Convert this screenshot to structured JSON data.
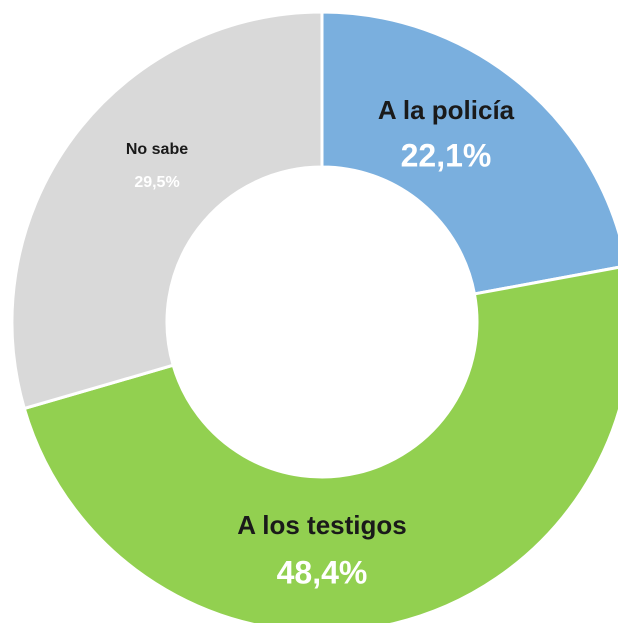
{
  "chart_data": {
    "type": "donut",
    "categories": [
      "A la policía",
      "A los testigos",
      "No sabe"
    ],
    "values": [
      22.1,
      48.4,
      29.5
    ],
    "value_labels": [
      "22,1%",
      "48,4%",
      "29,5%"
    ],
    "colors": [
      "#7aafde",
      "#92d050",
      "#d9d9d9"
    ]
  }
}
